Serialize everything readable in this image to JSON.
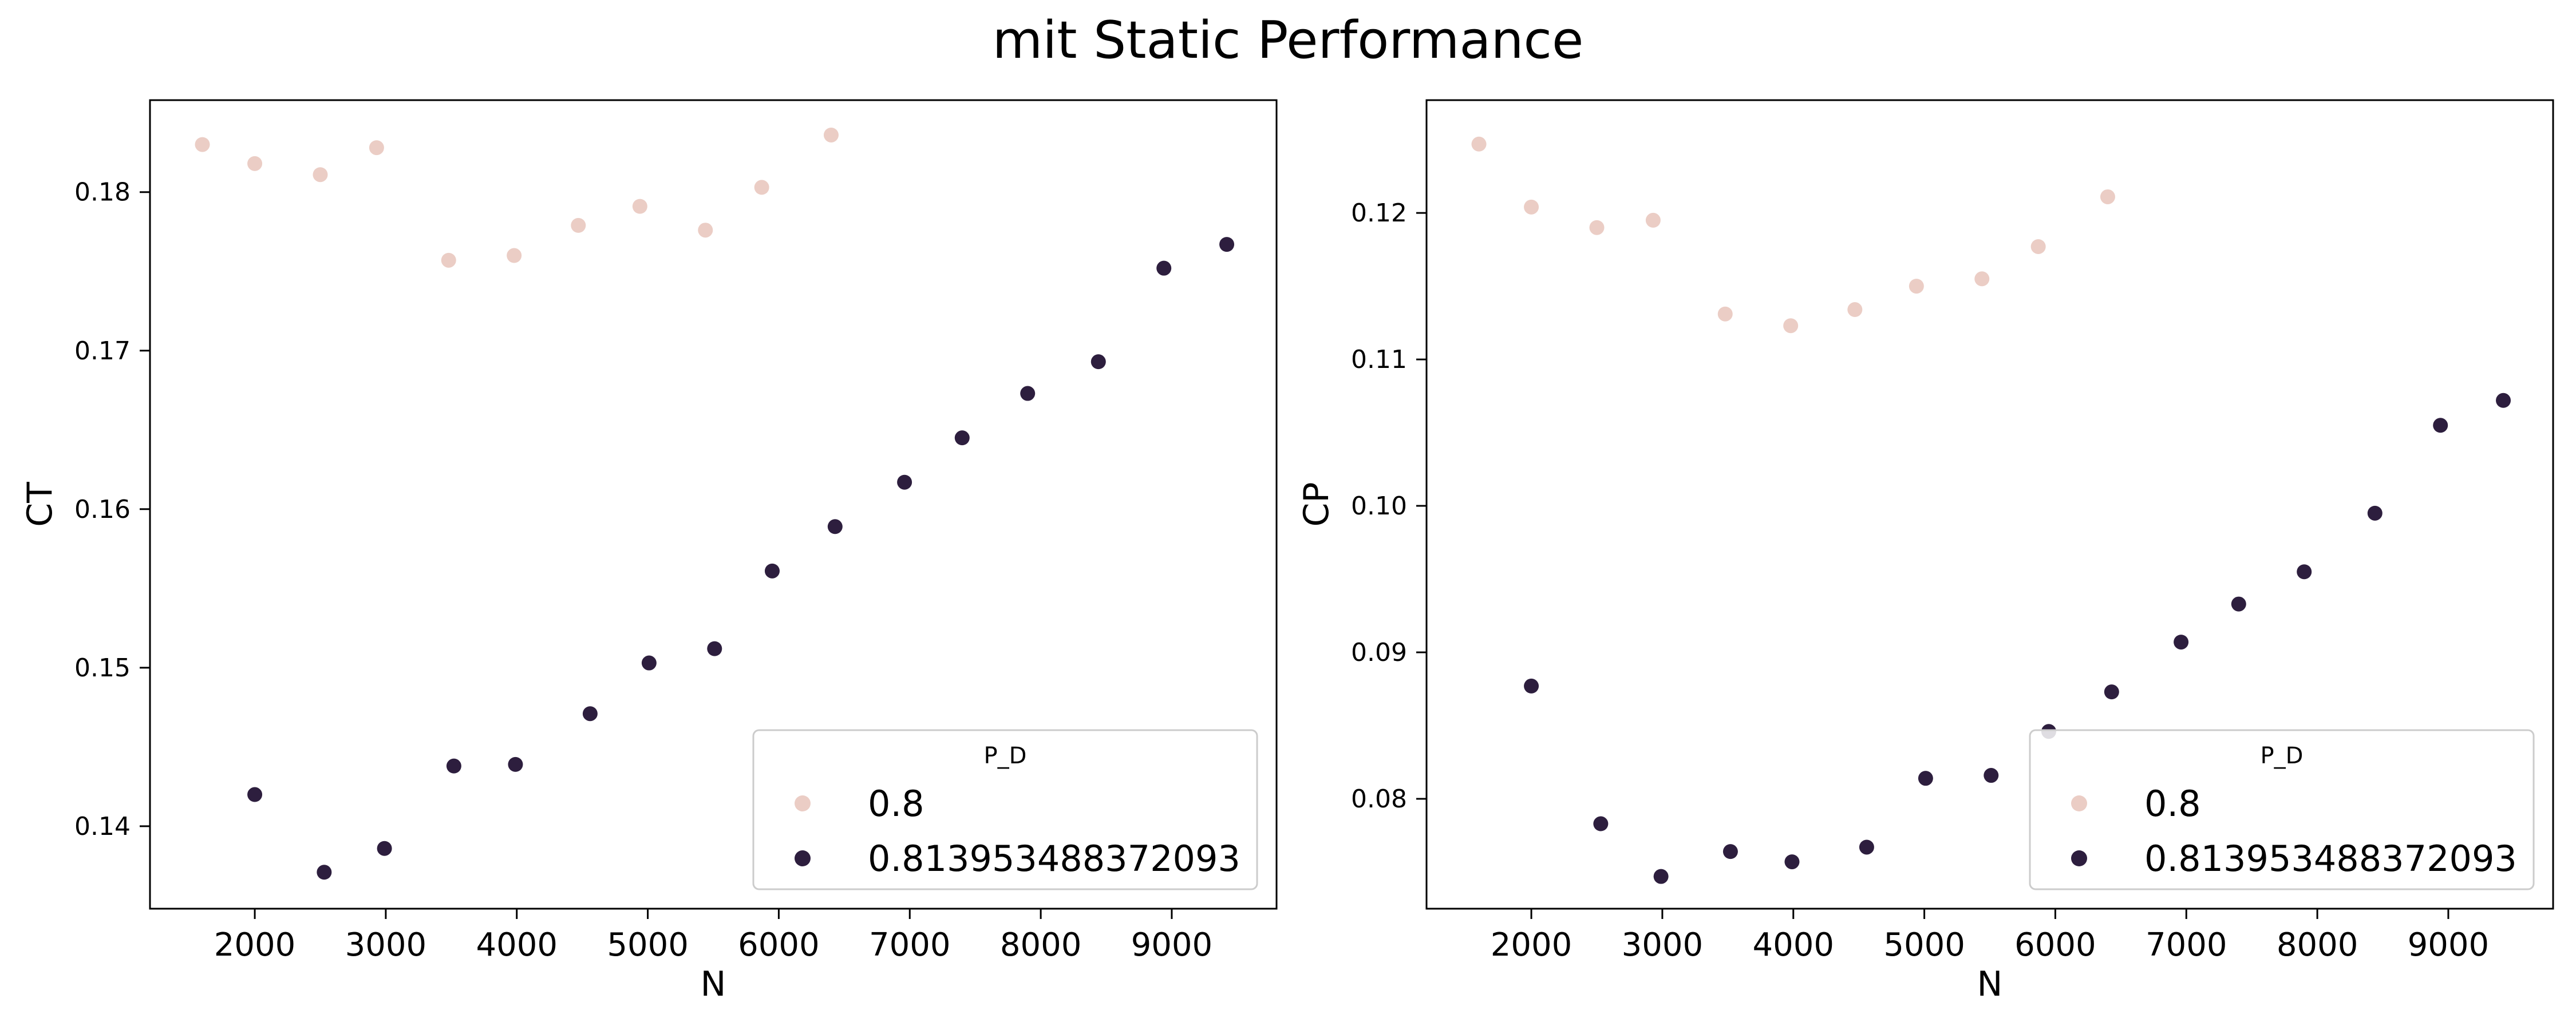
{
  "suptitle": "mit Static Performance",
  "colors": {
    "light": "#ebcdc5",
    "dark": "#2d1e3e"
  },
  "chart_data": [
    {
      "type": "scatter",
      "xlabel": "N",
      "ylabel": "CT",
      "xlim": [
        1200,
        9800
      ],
      "ylim": [
        0.1348,
        0.1858
      ],
      "xticks": [
        2000,
        3000,
        4000,
        5000,
        6000,
        7000,
        8000,
        9000
      ],
      "yticks": [
        0.14,
        0.15,
        0.16,
        0.17,
        0.18
      ],
      "ytick_labels": [
        "0.14",
        "0.15",
        "0.16",
        "0.17",
        "0.18"
      ],
      "legend": {
        "title": "P_D",
        "placement": "lower right"
      },
      "series": [
        {
          "name": "0.8",
          "color": "light",
          "points": [
            [
              1600,
              0.183
            ],
            [
              2000,
              0.1818
            ],
            [
              2500,
              0.1811
            ],
            [
              2930,
              0.1828
            ],
            [
              3480,
              0.1757
            ],
            [
              3980,
              0.176
            ],
            [
              4470,
              0.1779
            ],
            [
              4940,
              0.1791
            ],
            [
              5440,
              0.1776
            ],
            [
              5870,
              0.1803
            ],
            [
              6400,
              0.1836
            ]
          ]
        },
        {
          "name": "0.813953488372093",
          "color": "dark",
          "points": [
            [
              2000,
              0.142
            ],
            [
              2530,
              0.1371
            ],
            [
              2990,
              0.1386
            ],
            [
              3520,
              0.1438
            ],
            [
              3990,
              0.1439
            ],
            [
              4560,
              0.1471
            ],
            [
              5010,
              0.1503
            ],
            [
              5510,
              0.1512
            ],
            [
              5950,
              0.1561
            ],
            [
              6430,
              0.1589
            ],
            [
              6960,
              0.1617
            ],
            [
              7400,
              0.1645
            ],
            [
              7900,
              0.1673
            ],
            [
              8440,
              0.1693
            ],
            [
              8940,
              0.1752
            ],
            [
              9420,
              0.1767
            ]
          ]
        }
      ]
    },
    {
      "type": "scatter",
      "xlabel": "N",
      "ylabel": "CP",
      "xlim": [
        1200,
        9800
      ],
      "ylim": [
        0.0725,
        0.1277
      ],
      "xticks": [
        2000,
        3000,
        4000,
        5000,
        6000,
        7000,
        8000,
        9000
      ],
      "yticks": [
        0.08,
        0.09,
        0.1,
        0.11,
        0.12
      ],
      "ytick_labels": [
        "0.08",
        "0.09",
        "0.10",
        "0.11",
        "0.12"
      ],
      "legend": {
        "title": "P_D",
        "placement": "lower right"
      },
      "series": [
        {
          "name": "0.8",
          "color": "light",
          "points": [
            [
              1600,
              0.1247
            ],
            [
              2000,
              0.1204
            ],
            [
              2500,
              0.119
            ],
            [
              2930,
              0.1195
            ],
            [
              3480,
              0.1131
            ],
            [
              3980,
              0.1123
            ],
            [
              4470,
              0.1134
            ],
            [
              4940,
              0.115
            ],
            [
              5440,
              0.1155
            ],
            [
              5870,
              0.1177
            ],
            [
              6400,
              0.1211
            ]
          ]
        },
        {
          "name": "0.813953488372093",
          "color": "dark",
          "points": [
            [
              2000,
              0.0877
            ],
            [
              2530,
              0.0783
            ],
            [
              2990,
              0.0747
            ],
            [
              3520,
              0.0764
            ],
            [
              3990,
              0.0757
            ],
            [
              4560,
              0.0767
            ],
            [
              5010,
              0.0814
            ],
            [
              5510,
              0.0816
            ],
            [
              5950,
              0.0846
            ],
            [
              6430,
              0.0873
            ],
            [
              6960,
              0.0907
            ],
            [
              7400,
              0.0933
            ],
            [
              7900,
              0.0955
            ],
            [
              8440,
              0.0995
            ],
            [
              8940,
              0.1055
            ],
            [
              9420,
              0.1072
            ]
          ]
        }
      ]
    }
  ]
}
